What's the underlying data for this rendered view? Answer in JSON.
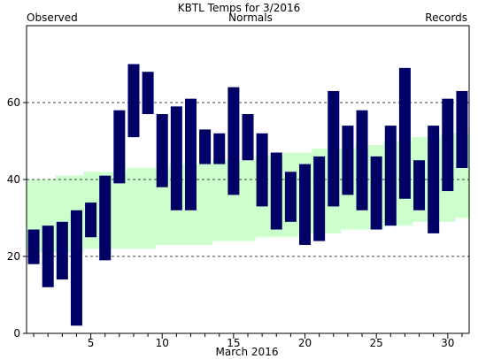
{
  "title": "KBTL Temps for 3/2016",
  "legend": {
    "observed": "Observed",
    "normals": "Normals",
    "records": "Records"
  },
  "colors": {
    "observed": "#000066",
    "normals": "#ccffcc",
    "records": "#cc88cc",
    "normals_text": "#007700",
    "grid": "#000000"
  },
  "chart_data": {
    "type": "bar",
    "title": "KBTL Temps for 3/2016",
    "xlabel": "March 2016",
    "ylabel": "",
    "xlim": [
      0.5,
      31.5
    ],
    "ylim": [
      0,
      80
    ],
    "yticks": [
      0,
      20,
      40,
      60
    ],
    "xticks": [
      5,
      10,
      15,
      20,
      25,
      30
    ],
    "grid": "horizontal dashed at 20, 40, 60",
    "days": [
      1,
      2,
      3,
      4,
      5,
      6,
      7,
      8,
      9,
      10,
      11,
      12,
      13,
      14,
      15,
      16,
      17,
      18,
      19,
      20,
      21,
      22,
      23,
      24,
      25,
      26,
      27,
      28,
      29,
      30,
      31
    ],
    "series": [
      {
        "name": "Observed",
        "high": [
          27,
          28,
          29,
          32,
          34,
          41,
          58,
          70,
          68,
          57,
          59,
          61,
          53,
          52,
          64,
          57,
          52,
          47,
          42,
          44,
          46,
          63,
          54,
          58,
          46,
          54,
          69,
          45,
          54,
          61,
          63
        ],
        "low": [
          18,
          12,
          14,
          2,
          25,
          19,
          39,
          51,
          57,
          38,
          32,
          32,
          44,
          44,
          36,
          45,
          33,
          27,
          29,
          23,
          24,
          33,
          36,
          32,
          27,
          28,
          35,
          32,
          26,
          37,
          43
        ]
      },
      {
        "name": "Normals",
        "high": [
          40,
          40,
          41,
          41,
          42,
          42,
          42,
          43,
          43,
          43,
          44,
          44,
          44,
          45,
          45,
          45,
          46,
          46,
          47,
          47,
          48,
          48,
          48,
          49,
          49,
          50,
          50,
          51,
          51,
          52,
          52
        ],
        "low": [
          21,
          21,
          21,
          21,
          22,
          22,
          22,
          22,
          22,
          23,
          23,
          23,
          23,
          24,
          24,
          24,
          25,
          25,
          25,
          26,
          26,
          26,
          27,
          27,
          27,
          28,
          28,
          29,
          29,
          29,
          30
        ]
      }
    ]
  }
}
